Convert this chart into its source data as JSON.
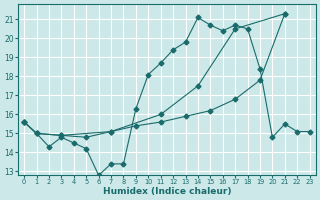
{
  "title": "",
  "xlabel": "Humidex (Indice chaleur)",
  "ylabel": "",
  "bg_color": "#cce8e8",
  "grid_color": "#ffffff",
  "line_color": "#1a6b6b",
  "xlim": [
    -0.5,
    23.5
  ],
  "ylim": [
    12.8,
    21.8
  ],
  "yticks": [
    13,
    14,
    15,
    16,
    17,
    18,
    19,
    20,
    21
  ],
  "xticks": [
    0,
    1,
    2,
    3,
    4,
    5,
    6,
    7,
    8,
    9,
    10,
    11,
    12,
    13,
    14,
    15,
    16,
    17,
    18,
    19,
    20,
    21,
    22,
    23
  ],
  "line1_x": [
    0,
    1,
    2,
    3,
    4,
    5,
    6,
    7,
    8,
    9,
    10,
    11,
    12,
    13,
    14,
    15,
    16,
    17,
    18,
    19,
    20,
    21,
    22,
    23
  ],
  "line1_y": [
    15.6,
    15.0,
    14.3,
    14.8,
    14.5,
    14.2,
    12.8,
    13.4,
    13.4,
    16.3,
    18.1,
    18.7,
    19.4,
    19.8,
    21.1,
    20.7,
    20.4,
    20.7,
    20.5,
    18.4,
    14.8,
    15.5,
    15.1,
    15.1
  ],
  "line2_x": [
    0,
    1,
    3,
    5,
    7,
    9,
    11,
    13,
    15,
    17,
    19,
    21
  ],
  "line2_y": [
    15.6,
    15.0,
    14.9,
    14.8,
    15.1,
    15.4,
    15.6,
    15.9,
    16.2,
    16.8,
    17.8,
    21.3
  ],
  "line3_x": [
    0,
    1,
    3,
    7,
    11,
    14,
    17,
    21
  ],
  "line3_y": [
    15.6,
    15.0,
    14.9,
    15.1,
    16.0,
    17.5,
    20.5,
    21.3
  ],
  "markersize": 2.5
}
